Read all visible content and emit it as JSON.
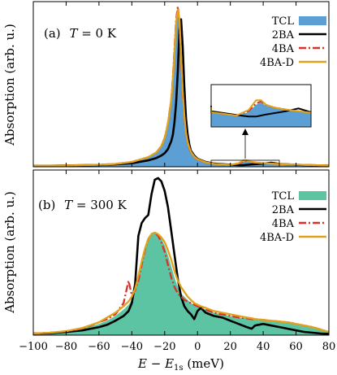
{
  "chart_data": [
    {
      "type": "area",
      "panel_label": "(a)",
      "panel_condition": "T = 0 K",
      "ylabel": "Absorption (arb. u.)",
      "xlabel": "E − E1s (meV)",
      "xlim": [
        -100,
        80
      ],
      "ylim": [
        0,
        1
      ],
      "legend_position": "top-right",
      "x": [
        -100,
        -80,
        -60,
        -50,
        -40,
        -30,
        -25,
        -22,
        -20,
        -18,
        -16,
        -15,
        -14,
        -13,
        -12,
        -11,
        -10,
        -9,
        -8,
        -7,
        -6,
        -5,
        -4,
        -2,
        0,
        5,
        10,
        20,
        25,
        28,
        30,
        32,
        35,
        40,
        45,
        50,
        60,
        70,
        80
      ],
      "series": [
        {
          "name": "TCL",
          "style": "filled",
          "color": "#5b9fd4",
          "values": [
            0.005,
            0.008,
            0.012,
            0.018,
            0.03,
            0.06,
            0.09,
            0.13,
            0.18,
            0.27,
            0.42,
            0.55,
            0.72,
            0.9,
            0.99,
            0.93,
            0.7,
            0.48,
            0.33,
            0.22,
            0.16,
            0.12,
            0.095,
            0.065,
            0.048,
            0.028,
            0.018,
            0.012,
            0.018,
            0.032,
            0.036,
            0.03,
            0.026,
            0.022,
            0.019,
            0.016,
            0.012,
            0.009,
            0.007
          ]
        },
        {
          "name": "2BA",
          "style": "solid",
          "color": "#000000",
          "values": [
            0.005,
            0.008,
            0.011,
            0.015,
            0.022,
            0.04,
            0.055,
            0.07,
            0.085,
            0.11,
            0.16,
            0.2,
            0.28,
            0.4,
            0.6,
            0.86,
            0.92,
            0.75,
            0.5,
            0.3,
            0.2,
            0.14,
            0.1,
            0.07,
            0.05,
            0.03,
            0.02,
            0.013,
            0.01,
            0.01,
            0.012,
            0.014,
            0.016,
            0.02,
            0.025,
            0.018,
            0.012,
            0.009,
            0.007
          ]
        },
        {
          "name": "4BA",
          "style": "dashdot",
          "color": "#d9312b",
          "values": [
            0.005,
            0.008,
            0.012,
            0.018,
            0.03,
            0.06,
            0.09,
            0.13,
            0.18,
            0.27,
            0.42,
            0.56,
            0.74,
            0.92,
            1.0,
            0.9,
            0.66,
            0.45,
            0.31,
            0.21,
            0.15,
            0.115,
            0.09,
            0.062,
            0.046,
            0.027,
            0.018,
            0.012,
            0.02,
            0.034,
            0.038,
            0.031,
            0.027,
            0.023,
            0.02,
            0.017,
            0.013,
            0.01,
            0.008
          ]
        },
        {
          "name": "4BA-D",
          "style": "solid",
          "color": "#e0a21a",
          "values": [
            0.005,
            0.008,
            0.012,
            0.018,
            0.03,
            0.06,
            0.09,
            0.13,
            0.18,
            0.27,
            0.42,
            0.55,
            0.72,
            0.9,
            0.98,
            0.92,
            0.69,
            0.47,
            0.32,
            0.21,
            0.155,
            0.12,
            0.093,
            0.064,
            0.047,
            0.028,
            0.018,
            0.012,
            0.022,
            0.04,
            0.04,
            0.032,
            0.027,
            0.023,
            0.02,
            0.017,
            0.013,
            0.01,
            0.008
          ]
        }
      ],
      "inset": {
        "xlim": [
          10,
          50
        ],
        "ylim": [
          0,
          0.06
        ]
      }
    },
    {
      "type": "area",
      "panel_label": "(b)",
      "panel_condition": "T = 300 K",
      "ylabel": "Absorption (arb. u.)",
      "xlabel": "E − E1s (meV)",
      "xlim": [
        -100,
        80
      ],
      "ylim": [
        0,
        1
      ],
      "legend_position": "top-right",
      "x": [
        -100,
        -90,
        -80,
        -70,
        -60,
        -55,
        -50,
        -45,
        -42,
        -40,
        -38,
        -36,
        -34,
        -32,
        -30,
        -28,
        -26,
        -24,
        -22,
        -20,
        -18,
        -16,
        -14,
        -12,
        -10,
        -8,
        -6,
        -4,
        -2,
        0,
        2,
        5,
        10,
        15,
        20,
        25,
        30,
        33,
        35,
        40,
        45,
        50,
        55,
        60,
        65,
        70,
        75,
        80
      ],
      "series": [
        {
          "name": "TCL",
          "style": "filled",
          "color": "#5cc4a3",
          "values": [
            0.01,
            0.015,
            0.025,
            0.04,
            0.07,
            0.09,
            0.12,
            0.16,
            0.19,
            0.22,
            0.27,
            0.35,
            0.45,
            0.54,
            0.61,
            0.64,
            0.64,
            0.63,
            0.6,
            0.56,
            0.5,
            0.43,
            0.36,
            0.3,
            0.26,
            0.24,
            0.22,
            0.2,
            0.19,
            0.18,
            0.17,
            0.16,
            0.14,
            0.13,
            0.12,
            0.11,
            0.105,
            0.1,
            0.1,
            0.095,
            0.09,
            0.085,
            0.08,
            0.07,
            0.06,
            0.05,
            0.035,
            0.02
          ]
        },
        {
          "name": "2BA",
          "style": "solid",
          "color": "#000000",
          "values": [
            0.01,
            0.012,
            0.02,
            0.03,
            0.05,
            0.065,
            0.09,
            0.12,
            0.15,
            0.2,
            0.32,
            0.62,
            0.7,
            0.73,
            0.75,
            0.88,
            0.97,
            0.98,
            0.96,
            0.9,
            0.8,
            0.65,
            0.5,
            0.35,
            0.24,
            0.18,
            0.15,
            0.13,
            0.1,
            0.15,
            0.17,
            0.14,
            0.12,
            0.11,
            0.09,
            0.07,
            0.05,
            0.04,
            0.06,
            0.07,
            0.06,
            0.05,
            0.04,
            0.03,
            0.02,
            0.015,
            0.01,
            0.008
          ]
        },
        {
          "name": "4BA",
          "style": "dashdot",
          "color": "#d9312b",
          "values": [
            0.01,
            0.015,
            0.025,
            0.04,
            0.08,
            0.1,
            0.13,
            0.2,
            0.34,
            0.25,
            0.28,
            0.34,
            0.44,
            0.53,
            0.6,
            0.63,
            0.64,
            0.62,
            0.58,
            0.52,
            0.44,
            0.36,
            0.3,
            0.26,
            0.24,
            0.22,
            0.21,
            0.2,
            0.19,
            0.18,
            0.17,
            0.16,
            0.14,
            0.13,
            0.12,
            0.11,
            0.105,
            0.1,
            0.1,
            0.095,
            0.09,
            0.085,
            0.08,
            0.07,
            0.06,
            0.05,
            0.035,
            0.02
          ]
        },
        {
          "name": "4BA-D",
          "style": "solid",
          "color": "#e0a21a",
          "values": [
            0.01,
            0.015,
            0.025,
            0.045,
            0.08,
            0.11,
            0.14,
            0.18,
            0.21,
            0.24,
            0.29,
            0.37,
            0.46,
            0.54,
            0.6,
            0.63,
            0.64,
            0.63,
            0.61,
            0.58,
            0.53,
            0.47,
            0.4,
            0.34,
            0.3,
            0.27,
            0.24,
            0.22,
            0.2,
            0.19,
            0.18,
            0.17,
            0.15,
            0.14,
            0.13,
            0.12,
            0.11,
            0.105,
            0.1,
            0.095,
            0.09,
            0.085,
            0.08,
            0.07,
            0.06,
            0.05,
            0.035,
            0.02
          ]
        }
      ]
    }
  ],
  "shared_axis": {
    "xticks": [
      "−100",
      "−80",
      "−60",
      "−40",
      "−20",
      "0",
      "20",
      "40",
      "60",
      "80"
    ],
    "xlabel": "E − E1s (meV)"
  }
}
